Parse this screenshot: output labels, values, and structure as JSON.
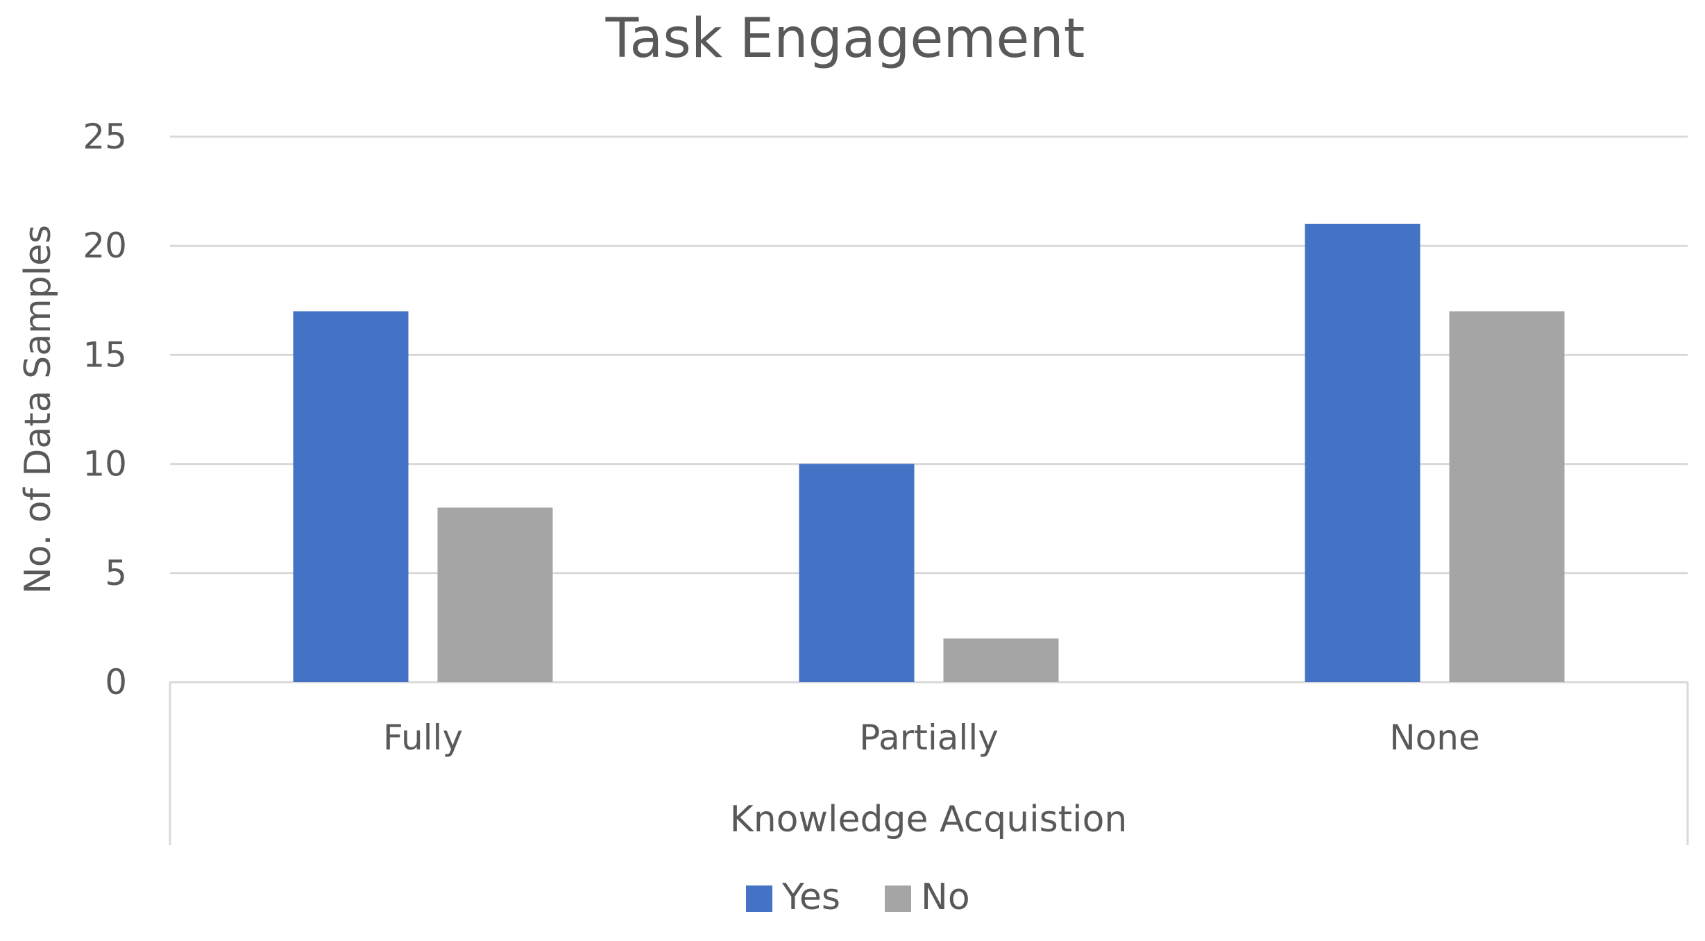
{
  "chart_data": {
    "type": "bar",
    "title": "Task Engagement",
    "xlabel": "Knowledge Acquistion",
    "ylabel": "No. of Data Samples",
    "categories": [
      "Fully",
      "Partially",
      "None"
    ],
    "series": [
      {
        "name": "Yes",
        "values": [
          17,
          10,
          21
        ],
        "color": "#4472C4"
      },
      {
        "name": "No",
        "values": [
          8,
          2,
          17
        ],
        "color": "#A5A5A5"
      }
    ],
    "ylim": [
      0,
      25
    ],
    "yticks": [
      0,
      5,
      10,
      15,
      20,
      25
    ],
    "grid": true,
    "legend_position": "bottom"
  }
}
